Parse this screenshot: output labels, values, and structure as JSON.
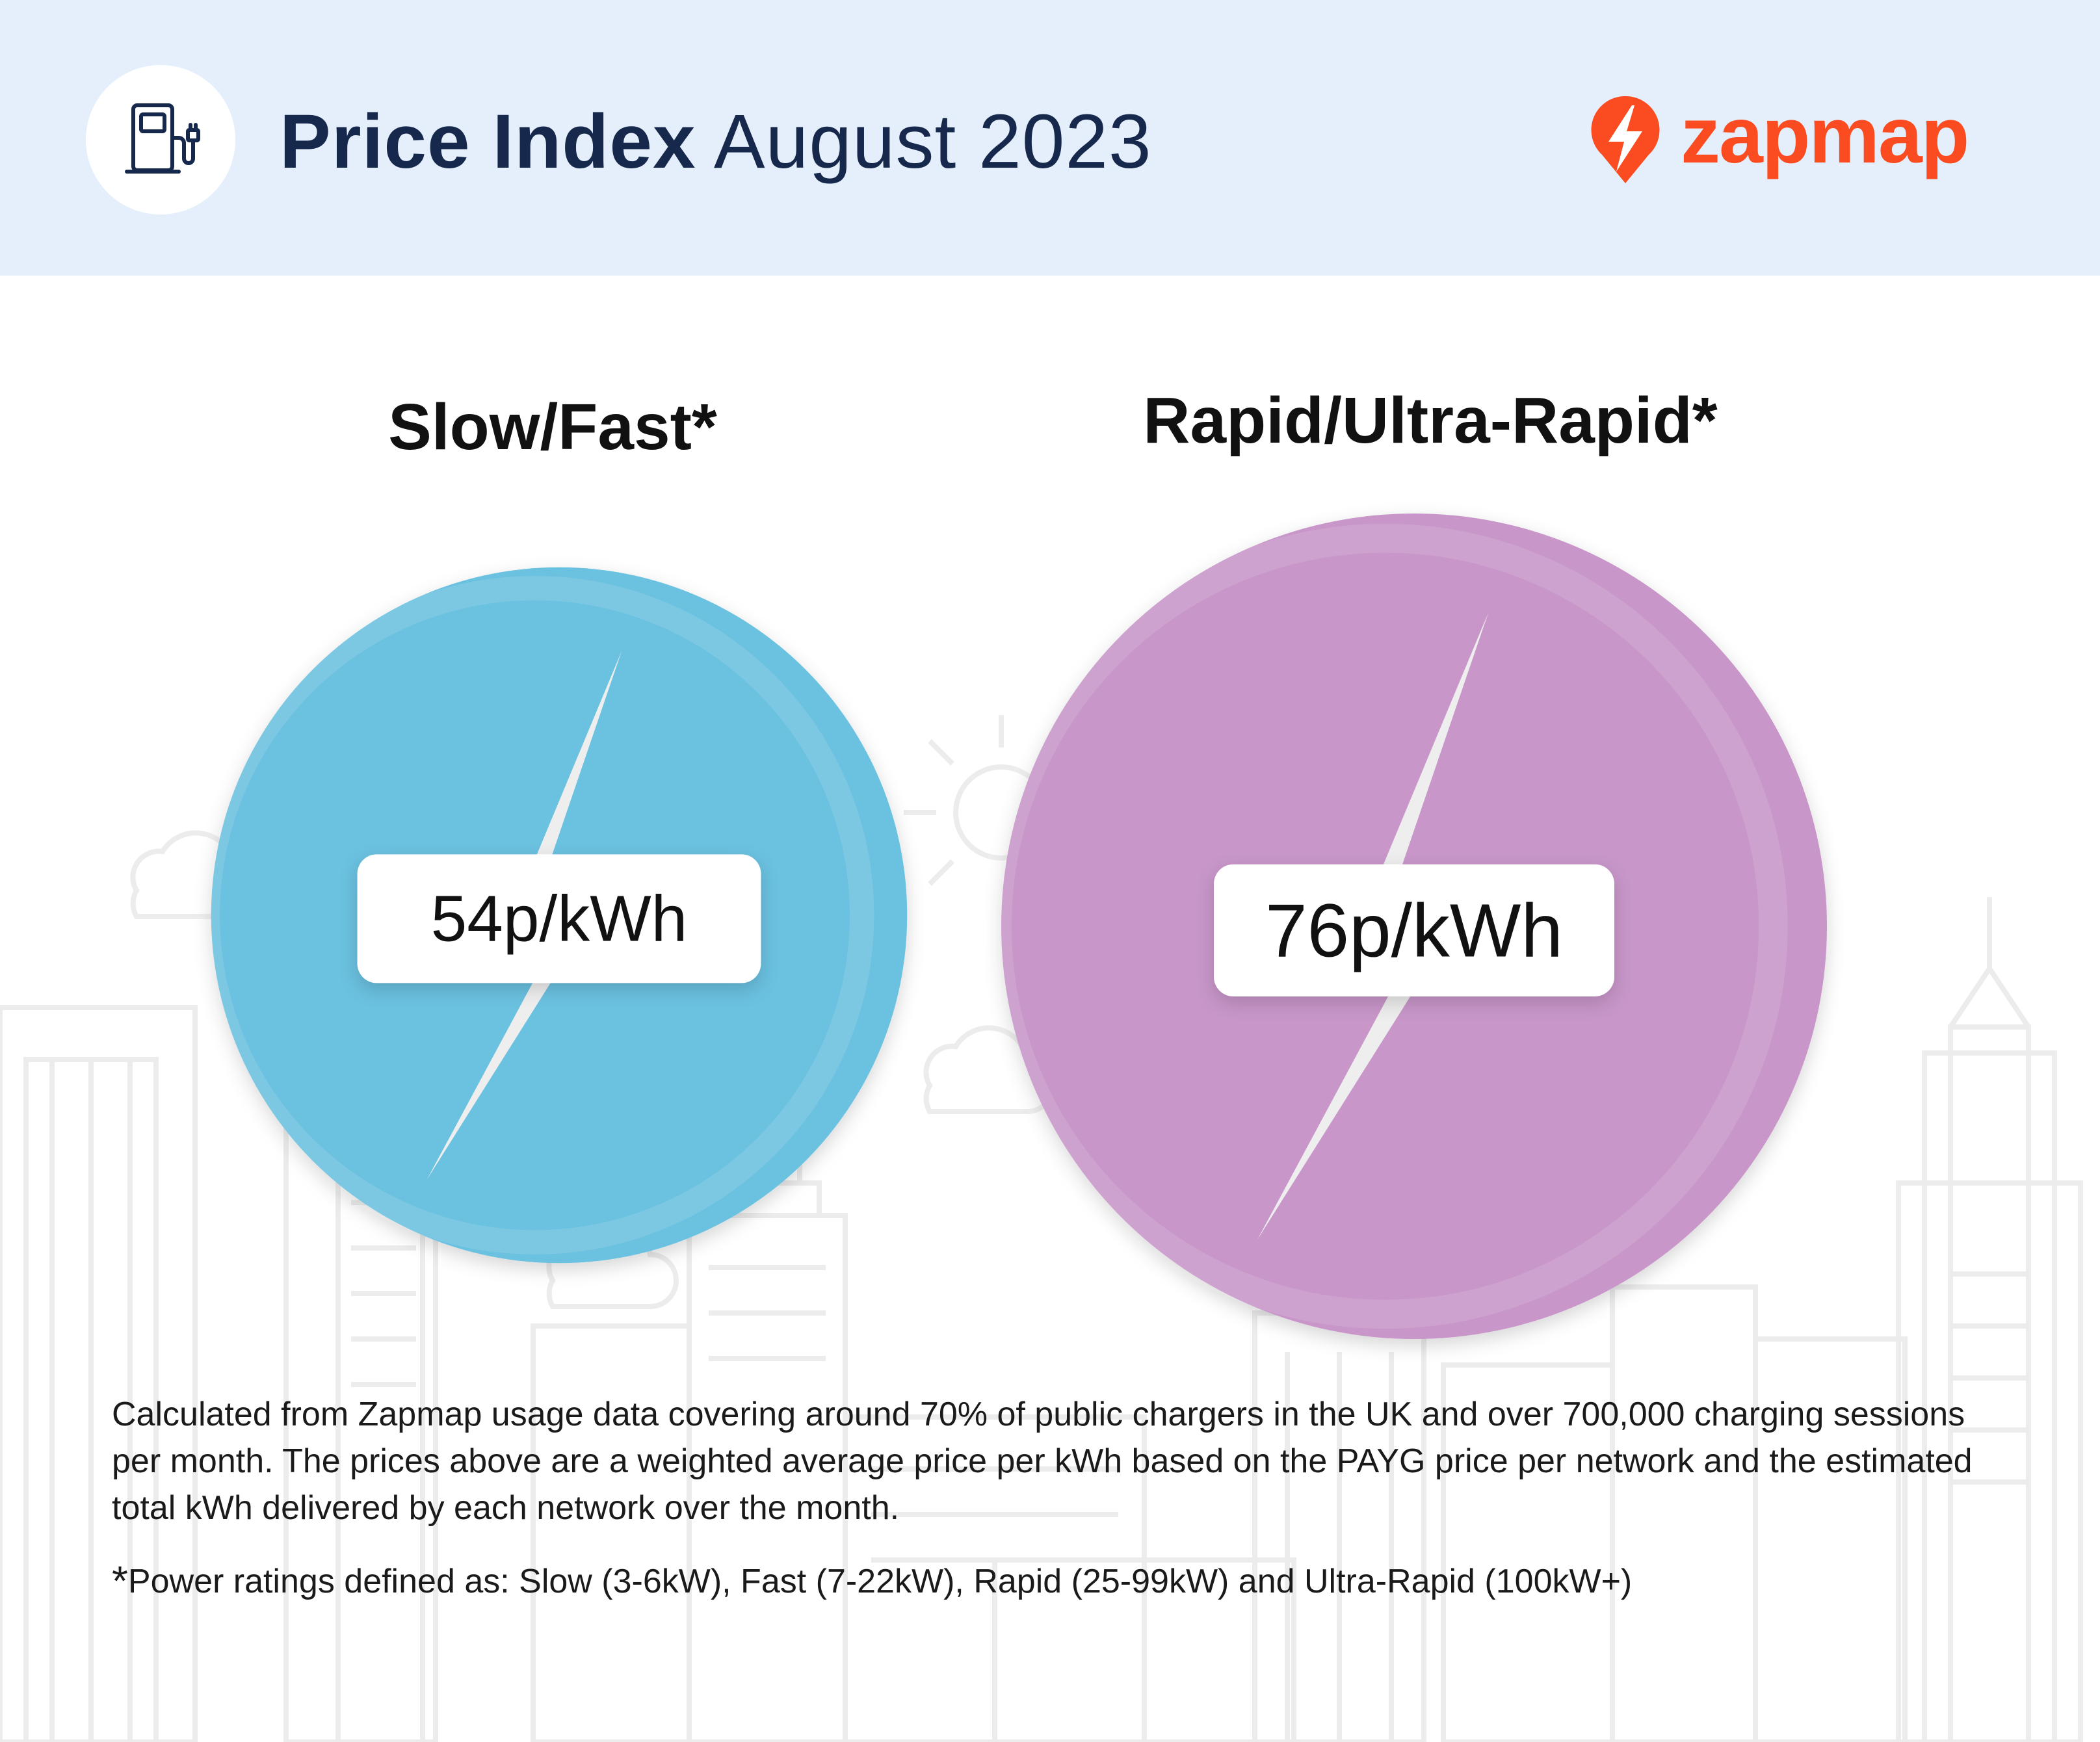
{
  "header": {
    "title_bold": "Price Index",
    "title_rest": "August 2023",
    "icon": "ev-charger-pump-icon",
    "logo_text": "zapmap",
    "logo_icon": "zapmap-bolt-pin-icon"
  },
  "chart_data": {
    "type": "bubble",
    "unit": "p/kWh",
    "categories": [
      "Slow/Fast*",
      "Rapid/Ultra-Rapid*"
    ],
    "values": [
      54,
      76
    ],
    "labels": [
      "54p/kWh",
      "76p/kWh"
    ],
    "colors": [
      "#6bc1e0",
      "#c896c9"
    ]
  },
  "note": "Calculated from Zapmap usage data covering around 70% of public chargers in the UK and over 700,000 charging sessions per month. The prices above are a weighted average price per kWh based on the PAYG price per network and the estimated total kWh delivered by each network over the month.",
  "footnote": {
    "star": "*",
    "text": "Power ratings defined as: Slow (3-6kW), Fast (7-22kW), Rapid (25-99kW) and Ultra-Rapid (100kW+)"
  },
  "colors": {
    "header_bg": "#e5effc",
    "title": "#16284b",
    "brand": "#fa4c20"
  }
}
